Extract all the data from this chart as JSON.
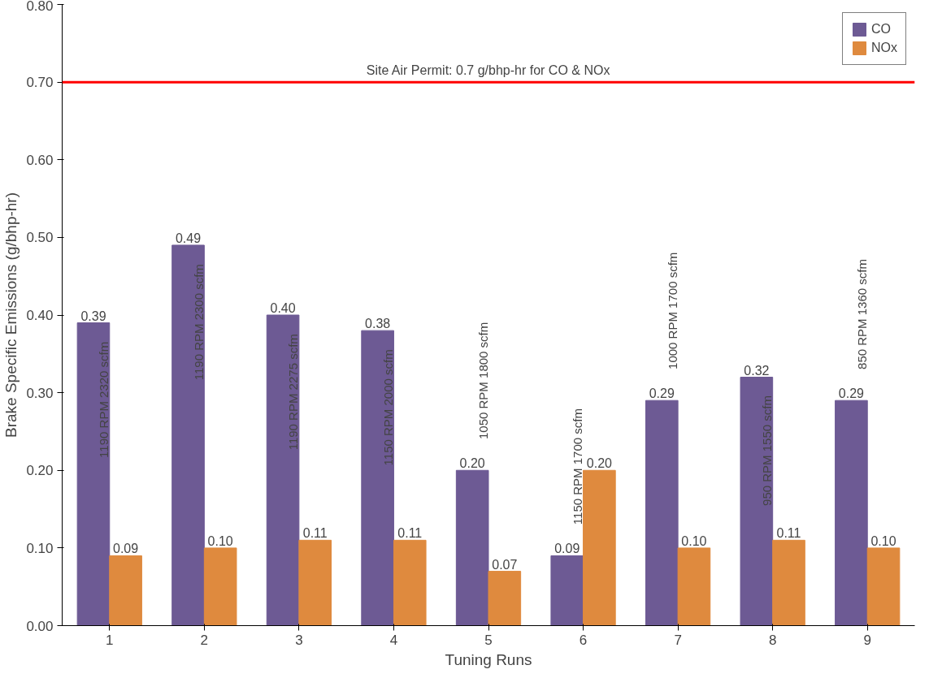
{
  "chart_data": {
    "type": "bar",
    "xlabel": "Tuning Runs",
    "ylabel": "Brake Specific Emissions (g/bhp-hr)",
    "categories": [
      "1",
      "2",
      "3",
      "4",
      "5",
      "6",
      "7",
      "8",
      "9"
    ],
    "series": [
      {
        "name": "CO",
        "color": "#6d5a94",
        "values": [
          0.39,
          0.49,
          0.4,
          0.38,
          0.2,
          0.09,
          0.29,
          0.32,
          0.29
        ],
        "value_labels": [
          "0.39",
          "0.49",
          "0.40",
          "0.38",
          "0.20",
          "0.09",
          "0.29",
          "0.32",
          "0.29"
        ]
      },
      {
        "name": "NOx",
        "color": "#df8a3e",
        "values": [
          0.09,
          0.1,
          0.11,
          0.11,
          0.07,
          0.2,
          0.1,
          0.11,
          0.1
        ],
        "value_labels": [
          "0.09",
          "0.10",
          "0.11",
          "0.11",
          "0.07",
          "0.20",
          "0.10",
          "0.11",
          "0.10"
        ]
      }
    ],
    "ylim": [
      0,
      0.8
    ],
    "yticks": [
      {
        "value": 0,
        "label": "0.00"
      },
      {
        "value": 0.1,
        "label": "0.10"
      },
      {
        "value": 0.2,
        "label": "0.20"
      },
      {
        "value": 0.3,
        "label": "0.30"
      },
      {
        "value": 0.4,
        "label": "0.40"
      },
      {
        "value": 0.5,
        "label": "0.50"
      },
      {
        "value": 0.6,
        "label": "0.60"
      },
      {
        "value": 0.7,
        "label": "0.70"
      },
      {
        "value": 0.8,
        "label": "0.80"
      }
    ],
    "ref_lines": [
      {
        "axis": "y",
        "value": 0.7,
        "label": "Site Air Permit: 0.7 g/bhp-hr for CO & NOx",
        "color": "#ff0000"
      }
    ],
    "annotations": [
      "1190 RPM   2320 scfm",
      "1190 RPM   2300 scfm",
      "1190 RPM   2275 scfm",
      "1150 RPM   2000 scfm",
      "1050 RPM   1800 scfm",
      "1150 RPM   1700 scfm",
      "1000 RPM   1700 scfm",
      "950 RPM   1550 scfm",
      "850 RPM   1360 scfm"
    ],
    "legend": "top right",
    "grid": false
  }
}
